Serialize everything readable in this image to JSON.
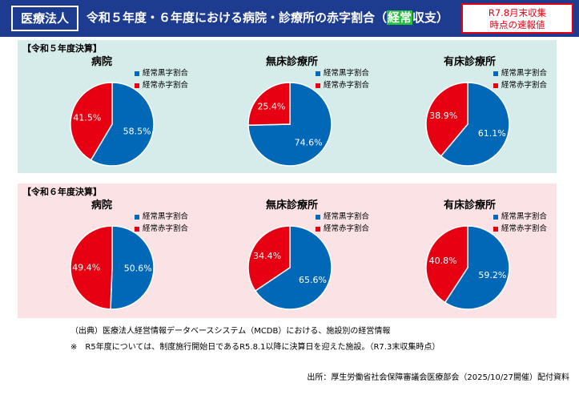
{
  "header": {
    "badge": "医療法人",
    "title_pre": "令和５年度・６年度における病院・診療所の赤字割合（",
    "title_highlight": "経常",
    "title_post": "収支）",
    "notice_line1": "R7.8月末収集",
    "notice_line2": "時点の速報値"
  },
  "colors": {
    "black": "#0068b7",
    "red": "#e60012",
    "panel5": "#d5ecea",
    "panel6": "#fbe2e4"
  },
  "chart_data": [
    {
      "type": "pie",
      "section": "【令和５年度決算】",
      "charts": [
        {
          "title": "病院",
          "labels": [
            "経常黒字割合",
            "経常赤字割合"
          ],
          "values": [
            58.5,
            41.5
          ],
          "data_labels": [
            "58.5%",
            "41.5%"
          ]
        },
        {
          "title": "無床診療所",
          "labels": [
            "経常黒字割合",
            "経常赤字割合"
          ],
          "values": [
            74.6,
            25.4
          ],
          "data_labels": [
            "74.6%",
            "25.4%"
          ]
        },
        {
          "title": "有床診療所",
          "labels": [
            "経常黒字割合",
            "経常赤字割合"
          ],
          "values": [
            61.1,
            38.9
          ],
          "data_labels": [
            "61.1%",
            "38.9%"
          ]
        }
      ]
    },
    {
      "type": "pie",
      "section": "【令和６年度決算】",
      "charts": [
        {
          "title": "病院",
          "labels": [
            "経常黒字割合",
            "経常赤字割合"
          ],
          "values": [
            50.6,
            49.4
          ],
          "data_labels": [
            "50.6%",
            "49.4%"
          ]
        },
        {
          "title": "無床診療所",
          "labels": [
            "経常黒字割合",
            "経常赤字割合"
          ],
          "values": [
            65.6,
            34.4
          ],
          "data_labels": [
            "65.6%",
            "34.4%"
          ]
        },
        {
          "title": "有床診療所",
          "labels": [
            "経常黒字割合",
            "経常赤字割合"
          ],
          "values": [
            59.2,
            40.8
          ],
          "data_labels": [
            "59.2%",
            "40.8%"
          ]
        }
      ]
    }
  ],
  "footnotes": {
    "source_note": "（出典）医療法人経営情報データベースシステム（MCDB）における、施設別の経営情報",
    "asterisk_note": "※　R5年度については、制度施行開始日であるR5.8.1以降に決算日を迎えた施設。（R7.3末収集時点）"
  },
  "source": "出所：厚生労働省社会保障審議会医療部会（2025/10/27開催）配付資料"
}
